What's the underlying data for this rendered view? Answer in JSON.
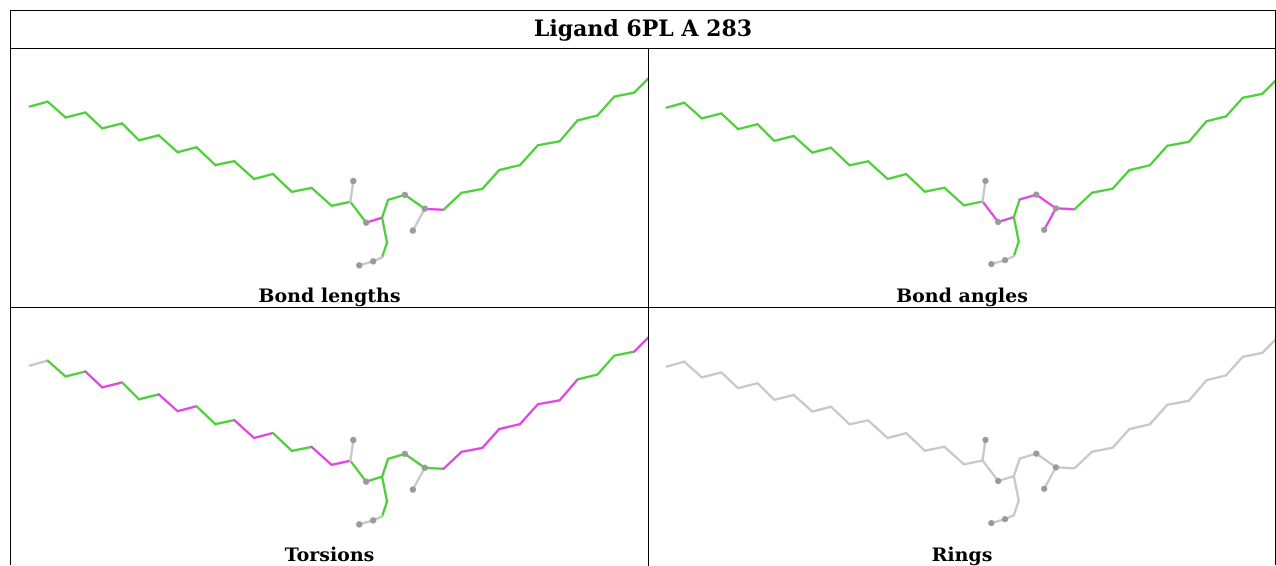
{
  "title": "Ligand 6PL A 283",
  "panels": [
    {
      "label": "Bond lengths"
    },
    {
      "label": "Bond angles"
    },
    {
      "label": "Torsions"
    },
    {
      "label": "Rings"
    }
  ],
  "colors": {
    "ok": "#4fcf3a",
    "outlier": "#e046e6",
    "neutral": "#c8c8c8",
    "atom": "#9a9a9a"
  }
}
